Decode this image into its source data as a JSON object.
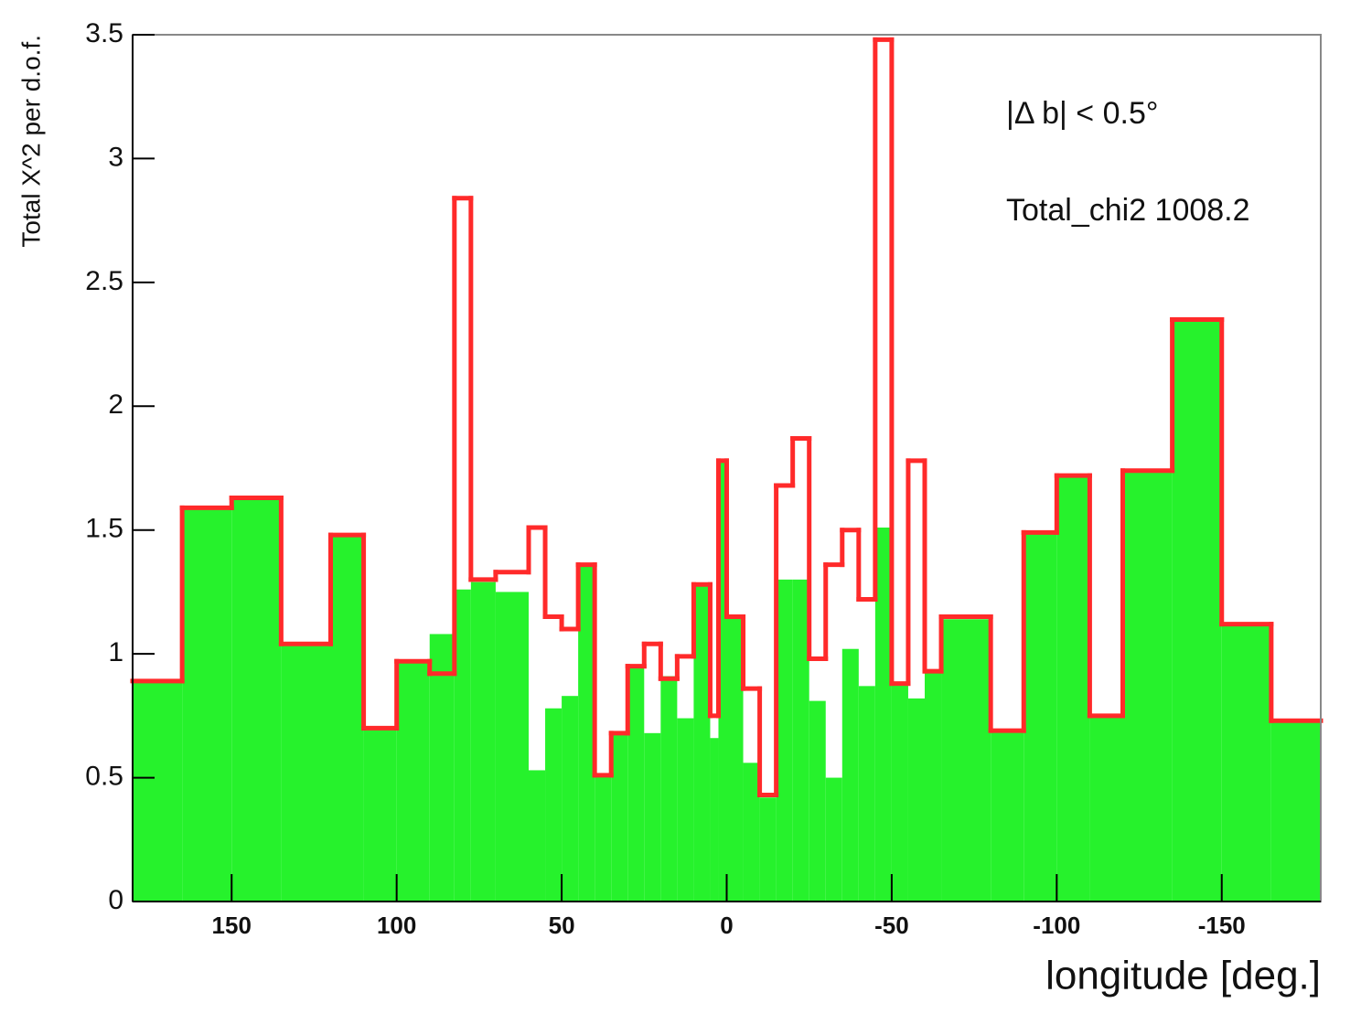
{
  "chart_data": {
    "type": "histogram",
    "x_label": "longitude [deg.]",
    "y_label": "Total X^2 per d.o.f.",
    "annotations": [
      "|Δ b| < 0.5°",
      "Total_chi2 1008.2"
    ],
    "bins": [
      180,
      165,
      150,
      135,
      120,
      110,
      100,
      90,
      82.5,
      77.5,
      70,
      60,
      55,
      50,
      45,
      40,
      35,
      30,
      25,
      20,
      15,
      10,
      5,
      2.5,
      0,
      -5,
      -10,
      -15,
      -20,
      -25,
      -30,
      -35,
      -40,
      -45,
      -50,
      -55,
      -60,
      -65,
      -80,
      -90,
      -100,
      -110,
      -120,
      -135,
      -150,
      -165,
      -180
    ],
    "series": [
      {
        "color": "#ff2a2a",
        "style": "step",
        "values": [
          0.89,
          1.59,
          1.63,
          1.04,
          1.48,
          0.7,
          0.97,
          0.92,
          2.84,
          1.3,
          1.33,
          1.51,
          1.15,
          1.1,
          1.36,
          0.51,
          0.68,
          0.95,
          1.04,
          0.9,
          0.99,
          1.28,
          0.75,
          1.78,
          1.15,
          0.86,
          0.43,
          1.68,
          1.87,
          0.98,
          1.36,
          1.5,
          1.22,
          3.48,
          0.88,
          1.78,
          0.93,
          1.15,
          0.69,
          1.49,
          1.72,
          0.75,
          1.74,
          2.35,
          1.12,
          0.73
        ]
      },
      {
        "color": "#26f22c",
        "style": "filled",
        "values": [
          0.89,
          1.59,
          1.63,
          1.04,
          1.48,
          0.7,
          0.97,
          1.08,
          1.26,
          1.29,
          1.25,
          0.53,
          0.78,
          0.83,
          1.36,
          0.51,
          0.68,
          0.95,
          0.68,
          0.91,
          0.74,
          1.28,
          0.66,
          1.78,
          1.15,
          0.56,
          0.42,
          1.3,
          1.3,
          0.81,
          0.5,
          1.02,
          0.87,
          1.51,
          0.88,
          0.82,
          0.93,
          1.14,
          0.69,
          1.49,
          1.72,
          0.75,
          1.74,
          2.35,
          1.12,
          0.73
        ]
      }
    ],
    "xlim": [
      180,
      -180
    ],
    "xticks": [
      150,
      100,
      50,
      0,
      -50,
      -100,
      -150
    ],
    "ylim": [
      0,
      3.5
    ],
    "yticks": [
      0,
      0.5,
      1,
      1.5,
      2,
      2.5,
      3,
      3.5
    ]
  }
}
